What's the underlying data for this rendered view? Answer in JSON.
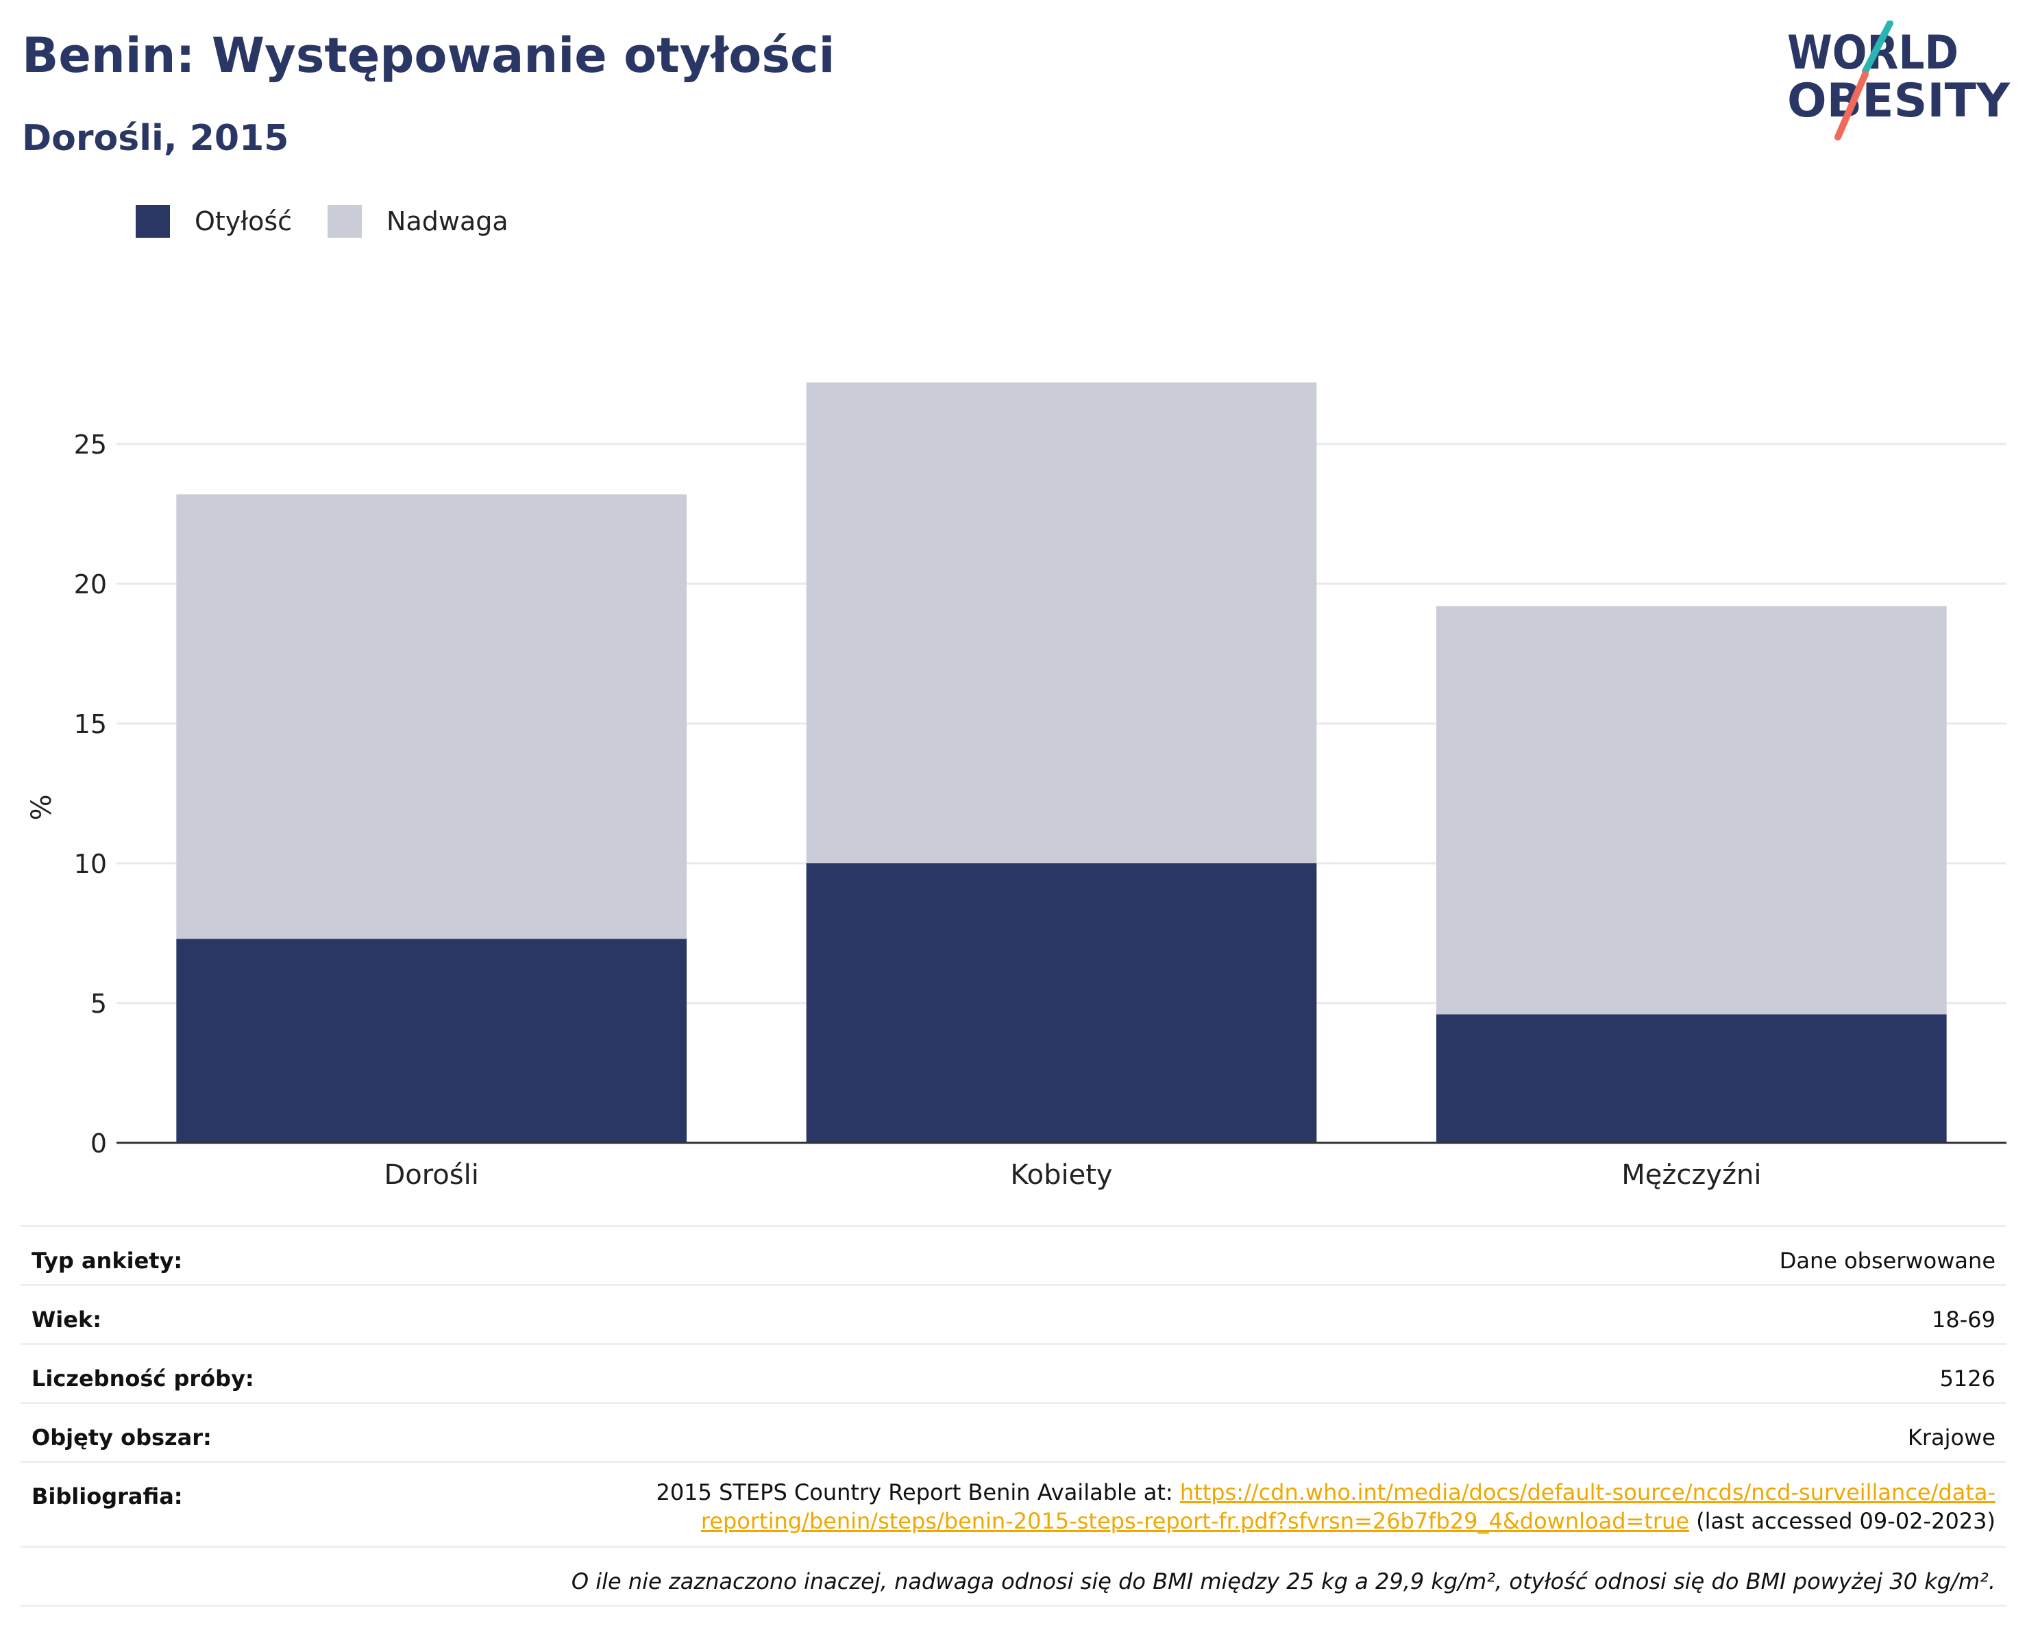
{
  "header": {
    "title": "Benin: Występowanie otyłości",
    "subtitle": "Dorośli, 2015"
  },
  "logo": {
    "line1": "WORLD",
    "line2": "OBESITY"
  },
  "legend": [
    {
      "label": "Otyłość",
      "color": "#2a3764"
    },
    {
      "label": "Nadwaga",
      "color": "#caccd7"
    }
  ],
  "chart_data": {
    "type": "bar",
    "stacked": true,
    "categories": [
      "Dorośli",
      "Kobiety",
      "Mężczyźni"
    ],
    "series": [
      {
        "name": "Otyłość",
        "values": [
          7.3,
          10.0,
          4.6
        ],
        "color": "#2a3764"
      },
      {
        "name": "Nadwaga",
        "values": [
          15.9,
          17.2,
          14.6
        ],
        "color": "#caccd7"
      }
    ],
    "title": "Benin: Występowanie otyłości",
    "subtitle": "Dorośli, 2015",
    "ylabel": "%",
    "xlabel": "",
    "ylim": [
      0,
      30
    ],
    "yticks": [
      0,
      5,
      10,
      15,
      20,
      25
    ],
    "grid": true,
    "legend_position": "top-left"
  },
  "info": {
    "survey_type": {
      "label": "Typ ankiety:",
      "value": "Dane obserwowane"
    },
    "age": {
      "label": "Wiek:",
      "value": "18-69"
    },
    "sample_size": {
      "label": "Liczebność próby:",
      "value": "5126"
    },
    "area": {
      "label": "Objęty obszar:",
      "value": "Krajowe"
    },
    "bibliography": {
      "label": "Bibliografia:",
      "prefix": "2015 STEPS Country Report Benin Available at: ",
      "link_line1": "https://cdn.who.int/media/docs/default-source/ncds/ncd-surveillance/data-",
      "link_line2": "reporting/benin/steps/benin-2015-steps-report-fr.pdf?sfvrsn=26b7fb29_4&download=true",
      "suffix": " (last accessed 09-02-2023)"
    },
    "note": "O ile nie zaznaczono inaczej, nadwaga odnosi się do BMI między 25 kg a 29,9 kg/m², otyłość odnosi się do BMI powyżej 30 kg/m²."
  }
}
